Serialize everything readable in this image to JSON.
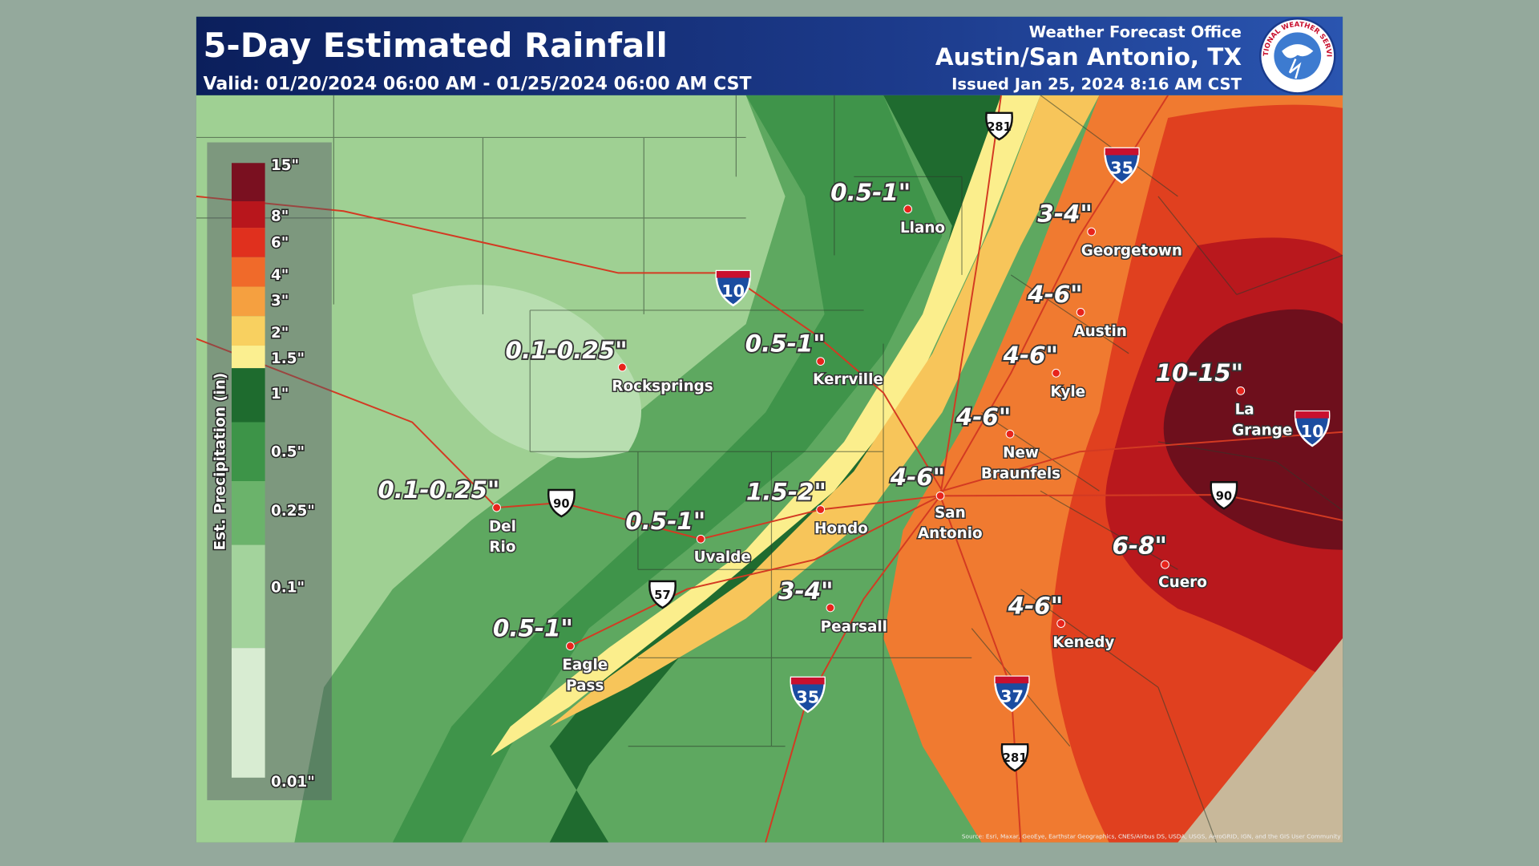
{
  "header": {
    "title": "5-Day Estimated Rainfall",
    "valid": "Valid: 01/20/2024 06:00 AM - 01/25/2024 06:00 AM CST",
    "office": "Weather Forecast Office",
    "location": "Austin/San Antonio, TX",
    "issued": "Issued Jan 25, 2024 8:16 AM CST",
    "logo": "NATIONAL WEATHER SERVICE"
  },
  "legend": {
    "title": "Est. Precipitation (in)",
    "labels": [
      "15\"",
      "8\"",
      "6\"",
      "4\"",
      "3\"",
      "2\"",
      "1.5\"",
      "1\"",
      "0.5\"",
      "0.25\"",
      "0.1\"",
      "0.01\""
    ]
  },
  "places": [
    {
      "name": [
        "Llano"
      ],
      "amount": "0.5-1\""
    },
    {
      "name": [
        "Georgetown"
      ],
      "amount": "3-4\""
    },
    {
      "name": [
        "Austin"
      ],
      "amount": "4-6\""
    },
    {
      "name": [
        "Kyle"
      ],
      "amount": "4-6\""
    },
    {
      "name": [
        "La",
        "Grange"
      ],
      "amount": "10-15\""
    },
    {
      "name": [
        "New",
        "Braunfels"
      ],
      "amount": "4-6\""
    },
    {
      "name": [
        "San",
        "Antonio"
      ],
      "amount": "4-6\""
    },
    {
      "name": [
        "Rocksprings"
      ],
      "amount": "0.1-0.25\""
    },
    {
      "name": [
        "Kerrville"
      ],
      "amount": "0.5-1\""
    },
    {
      "name": [
        "Del",
        "Rio"
      ],
      "amount": "0.1-0.25\""
    },
    {
      "name": [
        "Uvalde"
      ],
      "amount": "0.5-1\""
    },
    {
      "name": [
        "Hondo"
      ],
      "amount": "1.5-2\""
    },
    {
      "name": [
        "Pearsall"
      ],
      "amount": "3-4\""
    },
    {
      "name": [
        "Eagle",
        "Pass"
      ],
      "amount": "0.5-1\""
    },
    {
      "name": [
        "Cuero"
      ],
      "amount": "6-8\""
    },
    {
      "name": [
        "Kenedy"
      ],
      "amount": "4-6\""
    }
  ],
  "shields": [
    "281",
    "35",
    "10",
    "10",
    "90",
    "90",
    "57",
    "35",
    "37",
    "281"
  ],
  "source": "Source: Esri, Maxar, GeoEye, Earthstar Geographics, CNES/Airbus DS, USDA, USGS, AeroGRID, IGN, and the GIS User Community"
}
